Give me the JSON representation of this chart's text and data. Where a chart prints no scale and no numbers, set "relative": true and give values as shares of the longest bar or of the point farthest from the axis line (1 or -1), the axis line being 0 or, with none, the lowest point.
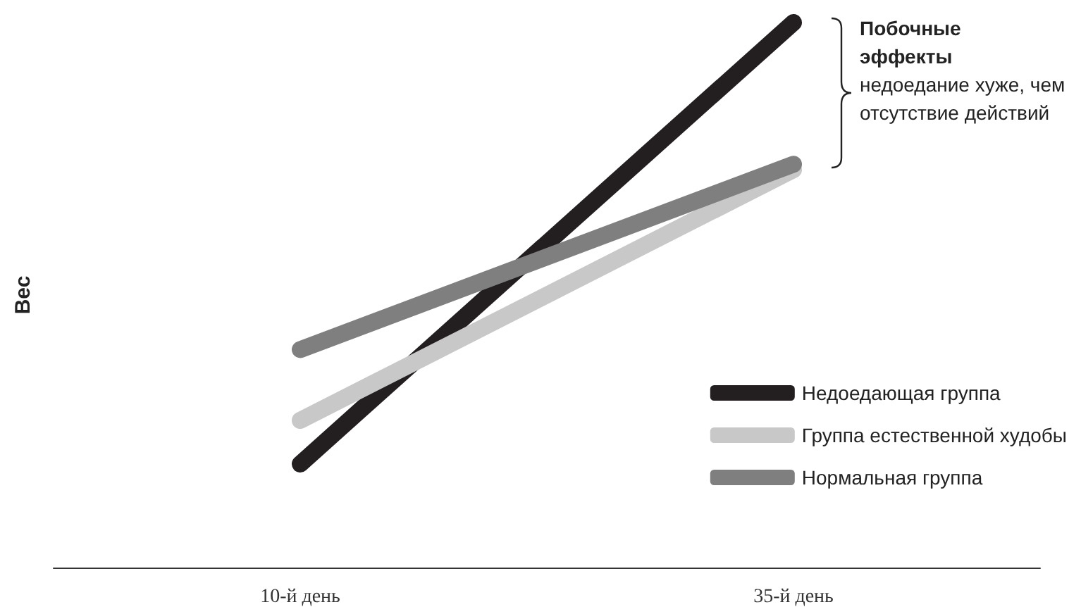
{
  "chart_data": {
    "type": "line",
    "relative": true,
    "ylabel": "Вес",
    "categories": [
      "10-й день",
      "35-й день"
    ],
    "series": [
      {
        "name": "Недоедающая группа",
        "color": "#231f20",
        "values": [
          0.19,
          1
        ]
      },
      {
        "name": "Группа естественной худобы",
        "color": "#c8c8c8",
        "values": [
          0.27,
          0.73
        ]
      },
      {
        "name": "Нормальная группа",
        "color": "#7f7f80",
        "values": [
          0.4,
          0.74
        ]
      }
    ],
    "annotations": [
      "Побочные эффекты",
      "недоедание хуже, чем отсутствие действий"
    ],
    "legend": "bottom right",
    "grid": false,
    "marker": "none",
    "line_style": "solid"
  }
}
